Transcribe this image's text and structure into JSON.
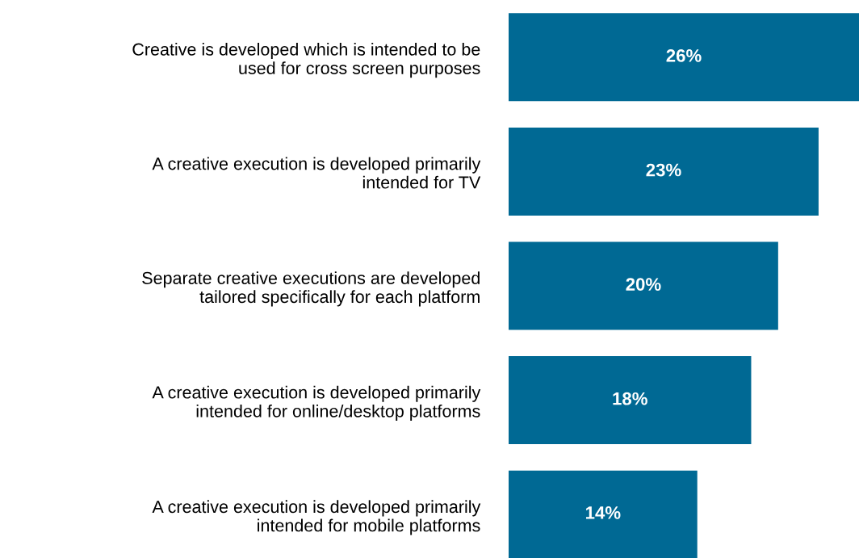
{
  "chart_data": {
    "type": "bar",
    "orientation": "horizontal",
    "categories": [
      "Creative is developed which is intended to be\nused for cross screen purposes",
      "A creative execution is developed primarily\nintended for TV",
      "Separate creative executions are developed\ntailored specifically for each platform",
      "A creative execution is developed primarily\nintended for online/desktop platforms",
      "A creative execution is developed primarily\nintended for mobile platforms"
    ],
    "values": [
      26,
      23,
      20,
      18,
      14
    ],
    "value_labels": [
      "26%",
      "23%",
      "20%",
      "18%",
      "14%"
    ],
    "color": "#006994",
    "grid": false,
    "legend": false
  }
}
